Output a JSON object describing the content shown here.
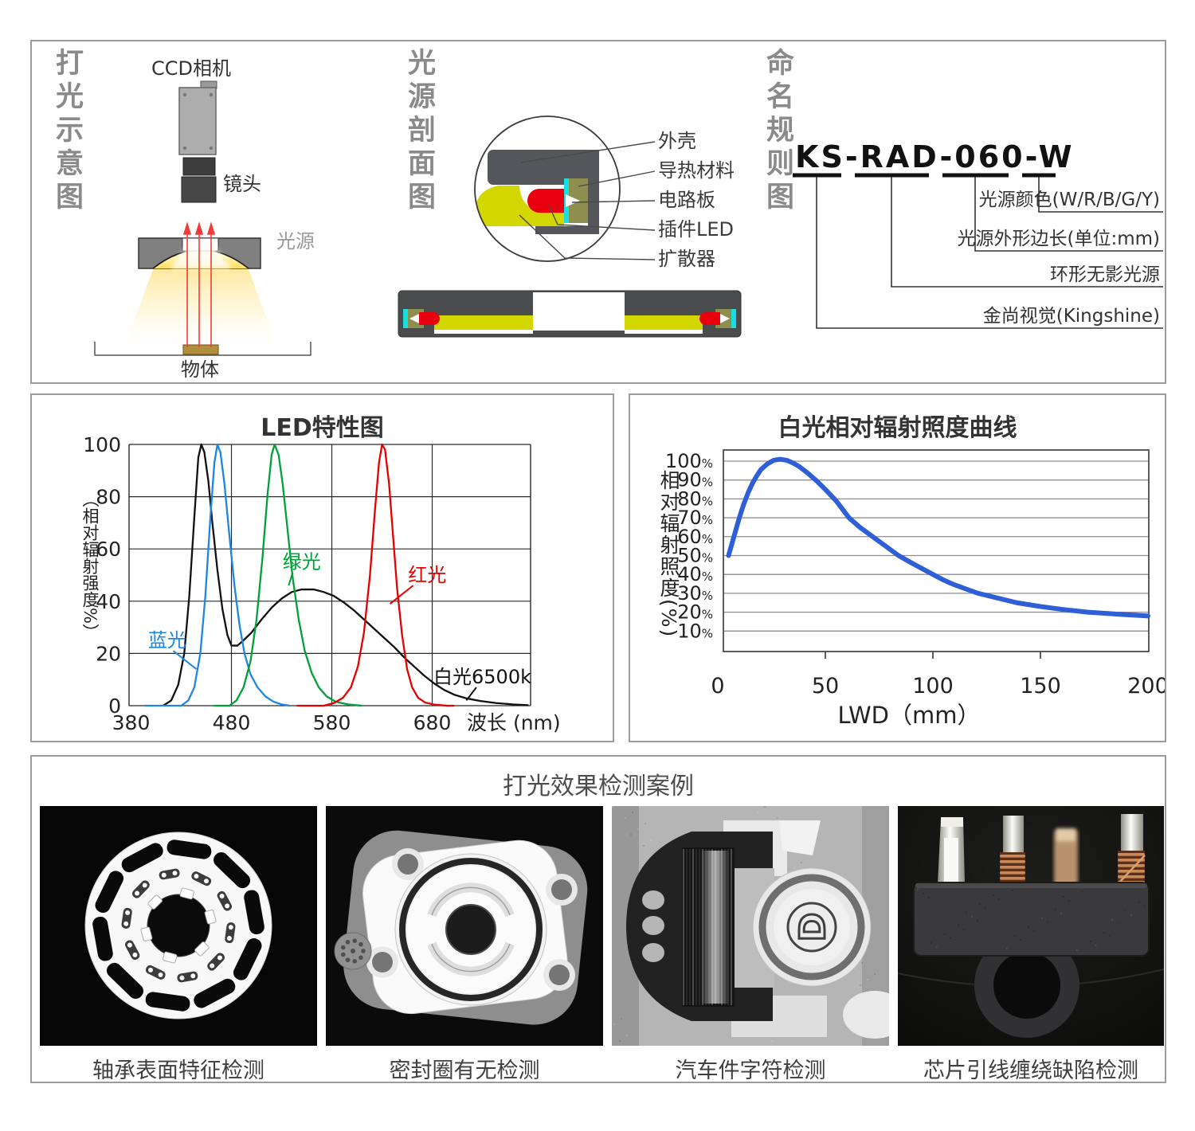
{
  "colors": {
    "panel_border": "#9b9b9b",
    "irradiance_curve_blue": "#2E5FD7",
    "led_blue": "#1D86E0",
    "led_green": "#00A13A",
    "led_red": "#E60000",
    "led_white": "#111111",
    "diffuser_yellow": "#D4D600",
    "pcb_cyan": "#19E0E0",
    "plugin_led_red": "#E8000D",
    "housing_gray": "#55565A",
    "thermal_olive": "#8E8F4F",
    "glow_yellow": "#FFE98F"
  },
  "schematic": {
    "title": "打光示意图",
    "camera_label": "CCD相机",
    "lens_label": "镜头",
    "light_label": "光源",
    "object_label": "物体"
  },
  "cross_section": {
    "title": "光源剖面图",
    "labels": [
      "外壳",
      "导热材料",
      "电路板",
      "插件LED",
      "扩散器"
    ]
  },
  "naming": {
    "title": "命名规则图",
    "code": "KS-RAD-060-W",
    "segments": [
      {
        "code": "KS",
        "label": "金尚视觉(Kingshine)"
      },
      {
        "code": "RAD",
        "label": "环形无影光源"
      },
      {
        "code": "060",
        "label": "光源外形边长(单位:mm)"
      },
      {
        "code": "W",
        "label": "光源颜色(W/R/B/G/Y)"
      }
    ]
  },
  "chart_data": [
    {
      "type": "line",
      "title": "LED特性图",
      "xlabel": "波长 (nm)",
      "ylabel": "（相对辐射强度%）",
      "xlim": [
        378,
        778
      ],
      "ylim": [
        0,
        100
      ],
      "xticks": [
        380,
        480,
        580,
        680
      ],
      "yticks": [
        0,
        20,
        40,
        60,
        80,
        100
      ],
      "grid": true,
      "legend_position": "annotations",
      "series": [
        {
          "name": "白光6500k",
          "color": "#111111",
          "points": [
            [
              412,
              0
            ],
            [
              420,
              2
            ],
            [
              427,
              8
            ],
            [
              433,
              20
            ],
            [
              438,
              42
            ],
            [
              443,
              72
            ],
            [
              447,
              95
            ],
            [
              450,
              100
            ],
            [
              453,
              97
            ],
            [
              457,
              86
            ],
            [
              461,
              70
            ],
            [
              466,
              52
            ],
            [
              471,
              37
            ],
            [
              476,
              27
            ],
            [
              480,
              23
            ],
            [
              486,
              23
            ],
            [
              492,
              25
            ],
            [
              500,
              28
            ],
            [
              510,
              33
            ],
            [
              520,
              37.5
            ],
            [
              530,
              41
            ],
            [
              540,
              43.5
            ],
            [
              550,
              44.5
            ],
            [
              562,
              44.5
            ],
            [
              572,
              43.5
            ],
            [
              582,
              42
            ],
            [
              592,
              39.5
            ],
            [
              602,
              36.5
            ],
            [
              612,
              33
            ],
            [
              622,
              29.5
            ],
            [
              632,
              26
            ],
            [
              642,
              22.5
            ],
            [
              652,
              18.5
            ],
            [
              662,
              15
            ],
            [
              672,
              11.5
            ],
            [
              682,
              8.5
            ],
            [
              692,
              6
            ],
            [
              702,
              4.2
            ],
            [
              714,
              2.8
            ],
            [
              728,
              1.8
            ],
            [
              744,
              1
            ],
            [
              760,
              0.5
            ],
            [
              776,
              0.2
            ]
          ]
        },
        {
          "name": "蓝光",
          "color": "#1D86E0",
          "points": [
            [
              393,
              0
            ],
            [
              430,
              0
            ],
            [
              437,
              2
            ],
            [
              443,
              7
            ],
            [
              449,
              20
            ],
            [
              454,
              42
            ],
            [
              459,
              72
            ],
            [
              463,
              93
            ],
            [
              466,
              100
            ],
            [
              469,
              97
            ],
            [
              473,
              85
            ],
            [
              478,
              65
            ],
            [
              483,
              46
            ],
            [
              488,
              31
            ],
            [
              493,
              20
            ],
            [
              499,
              12
            ],
            [
              506,
              7
            ],
            [
              514,
              3.5
            ],
            [
              522,
              1.5
            ],
            [
              530,
              0.5
            ],
            [
              538,
              0
            ]
          ]
        },
        {
          "name": "绿光",
          "color": "#00A13A",
          "points": [
            [
              462,
              0
            ],
            [
              478,
              0
            ],
            [
              485,
              2
            ],
            [
              492,
              7
            ],
            [
              499,
              17
            ],
            [
              505,
              33
            ],
            [
              511,
              57
            ],
            [
              516,
              81
            ],
            [
              520,
              96
            ],
            [
              523,
              100
            ],
            [
              527,
              96
            ],
            [
              531,
              85
            ],
            [
              536,
              67
            ],
            [
              541,
              49
            ],
            [
              547,
              33
            ],
            [
              553,
              21
            ],
            [
              560,
              12.5
            ],
            [
              567,
              7
            ],
            [
              575,
              3.5
            ],
            [
              584,
              1.5
            ],
            [
              596,
              0.5
            ],
            [
              610,
              0
            ]
          ]
        },
        {
          "name": "红光",
          "color": "#E60000",
          "points": [
            [
              545,
              0
            ],
            [
              572,
              0
            ],
            [
              582,
              1
            ],
            [
              591,
              3
            ],
            [
              599,
              7
            ],
            [
              606,
              15
            ],
            [
              612,
              28
            ],
            [
              618,
              50
            ],
            [
              623,
              75
            ],
            [
              627,
              93
            ],
            [
              630,
              100
            ],
            [
              633,
              98
            ],
            [
              637,
              85
            ],
            [
              641,
              65
            ],
            [
              645,
              45
            ],
            [
              650,
              27
            ],
            [
              655,
              14
            ],
            [
              660,
              7
            ],
            [
              666,
              3
            ],
            [
              673,
              1.2
            ],
            [
              682,
              0.4
            ],
            [
              695,
              0
            ],
            [
              702,
              0
            ]
          ]
        }
      ],
      "annotations": [
        {
          "text": "蓝光",
          "color": "#1D86E0",
          "x": 416,
          "y": 25,
          "line": [
            422,
            21,
            445,
            14
          ]
        },
        {
          "text": "绿光",
          "color": "#00A13A",
          "x": 550,
          "y": 55,
          "line": [
            541,
            51,
            537,
            46
          ]
        },
        {
          "text": "红光",
          "color": "#E60000",
          "x": 675,
          "y": 50,
          "line": [
            661,
            46,
            638,
            39
          ]
        },
        {
          "text": "白光6500k",
          "color": "#111111",
          "x": 730,
          "y": 11,
          "line": [
            724,
            7,
            714,
            2
          ]
        }
      ]
    },
    {
      "type": "line",
      "title": "白光相对辐射照度曲线",
      "xlabel": "LWD（mm）",
      "ylabel": "相对辐射照度(%)",
      "xlim": [
        0,
        200
      ],
      "ylim": [
        10,
        100
      ],
      "xticks": [
        0,
        50,
        100,
        150,
        200
      ],
      "yticks": [
        10,
        20,
        30,
        40,
        50,
        60,
        70,
        80,
        90,
        100
      ],
      "ytick_suffix": "%",
      "grid": true,
      "curve_color": "#2E5FD7",
      "points": [
        [
          5,
          50
        ],
        [
          6,
          54
        ],
        [
          8,
          62
        ],
        [
          10,
          70
        ],
        [
          12,
          77
        ],
        [
          14,
          83
        ],
        [
          16,
          88
        ],
        [
          18,
          92
        ],
        [
          20,
          95.5
        ],
        [
          23,
          98.5
        ],
        [
          26,
          100.5
        ],
        [
          29,
          101
        ],
        [
          32,
          100.5
        ],
        [
          35,
          99
        ],
        [
          38,
          97
        ],
        [
          42,
          93.5
        ],
        [
          46,
          89.5
        ],
        [
          50,
          85
        ],
        [
          55,
          79
        ],
        [
          61,
          70
        ],
        [
          66,
          65
        ],
        [
          72,
          60
        ],
        [
          78,
          55
        ],
        [
          84,
          50
        ],
        [
          91,
          45.5
        ],
        [
          100,
          40
        ],
        [
          105,
          37
        ],
        [
          110,
          34.5
        ],
        [
          121,
          30
        ],
        [
          130,
          27.5
        ],
        [
          139,
          25
        ],
        [
          150,
          23
        ],
        [
          160,
          21.5
        ],
        [
          172,
          20
        ],
        [
          185,
          19
        ],
        [
          200,
          18
        ]
      ]
    }
  ],
  "cases": {
    "title": "打光效果检测案例",
    "items": [
      {
        "caption": "轴承表面特征检测"
      },
      {
        "caption": "密封圈有无检测"
      },
      {
        "caption": "汽车件字符检测"
      },
      {
        "caption": "芯片引线缠绕缺陷检测"
      }
    ]
  }
}
